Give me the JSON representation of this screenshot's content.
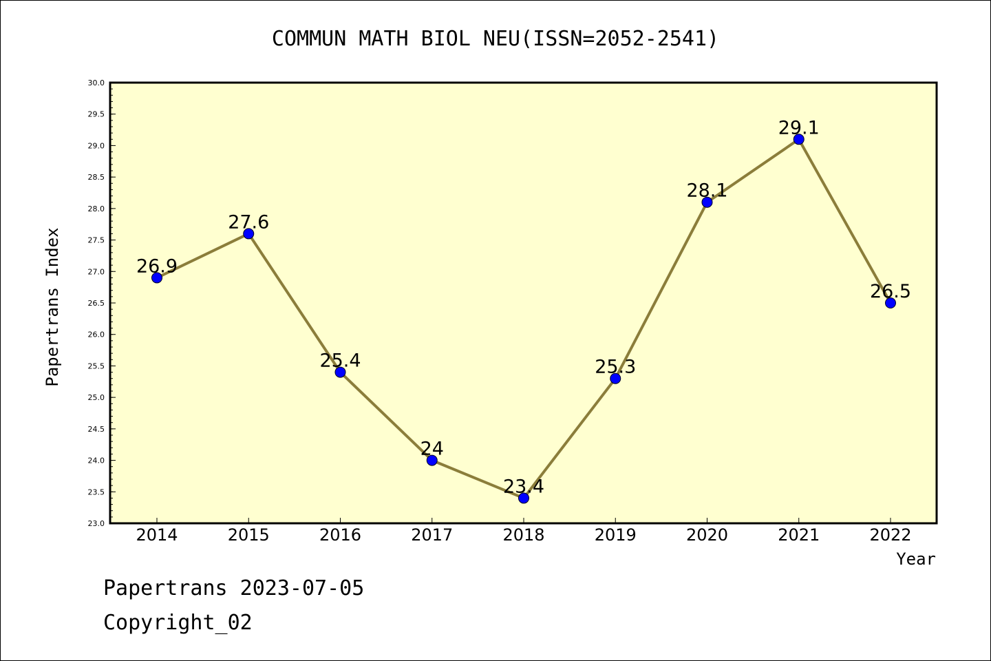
{
  "chart_data": {
    "type": "line",
    "title": "COMMUN MATH BIOL NEU(ISSN=2052-2541)",
    "xlabel": "Year",
    "ylabel": "Papertrans Index",
    "categories": [
      "2014",
      "2015",
      "2016",
      "2017",
      "2018",
      "2019",
      "2020",
      "2021",
      "2022"
    ],
    "series": [
      {
        "values": [
          26.9,
          27.6,
          25.4,
          24.0,
          23.4,
          25.3,
          28.1,
          29.1,
          26.5
        ],
        "labels": [
          "26.9",
          "27.6",
          "25.4",
          "24",
          "23.4",
          "25.3",
          "28.1",
          "29.1",
          "26.5"
        ],
        "color": "#8b7d3a",
        "marker_color": "#0000ff"
      }
    ],
    "ylim": [
      23.0,
      30.0
    ],
    "yticks": [
      "23.0",
      "23.5",
      "24.0",
      "24.5",
      "25.0",
      "25.5",
      "26.0",
      "26.5",
      "27.0",
      "27.5",
      "28.0",
      "28.5",
      "29.0",
      "29.5",
      "30.0"
    ],
    "plot_background": "#ffffd0",
    "grid": false,
    "legend": "none"
  },
  "footer": {
    "line1": "Papertrans 2023-07-05",
    "line2": "Copyright_02"
  }
}
